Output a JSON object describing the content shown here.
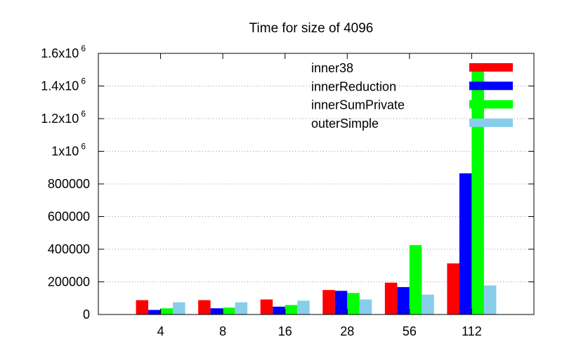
{
  "chart_data": {
    "type": "bar",
    "title": "Time for size of 4096",
    "xlabel": "",
    "ylabel": "",
    "categories": [
      "4",
      "8",
      "16",
      "28",
      "56",
      "112"
    ],
    "ylim": [
      0,
      1600000
    ],
    "yticks": [
      {
        "value": 0,
        "label": "0"
      },
      {
        "value": 200000,
        "label": "200000"
      },
      {
        "value": 400000,
        "label": "400000"
      },
      {
        "value": 600000,
        "label": "600000"
      },
      {
        "value": 800000,
        "label": "800000"
      },
      {
        "value": 1000000,
        "label": "1x10",
        "exp": "6"
      },
      {
        "value": 1200000,
        "label": "1.2x10",
        "exp": "6"
      },
      {
        "value": 1400000,
        "label": "1.4x10",
        "exp": "6"
      },
      {
        "value": 1600000,
        "label": "1.6x10",
        "exp": "6"
      }
    ],
    "grid": "horizontal-dotted",
    "legend_position": "top-right",
    "series": [
      {
        "name": "inner38",
        "color": "#ff0000",
        "values": [
          88000,
          88000,
          92000,
          150000,
          195000,
          313000
        ]
      },
      {
        "name": "innerReduction",
        "color": "#0000ff",
        "values": [
          28000,
          38000,
          48000,
          145000,
          168000,
          865000
        ]
      },
      {
        "name": "innerSumPrivate",
        "color": "#00ff00",
        "values": [
          38000,
          42000,
          58000,
          132000,
          425000,
          1520000
        ]
      },
      {
        "name": "outerSimple",
        "color": "#87ceeb",
        "values": [
          75000,
          75000,
          85000,
          92000,
          122000,
          178000
        ]
      }
    ]
  }
}
